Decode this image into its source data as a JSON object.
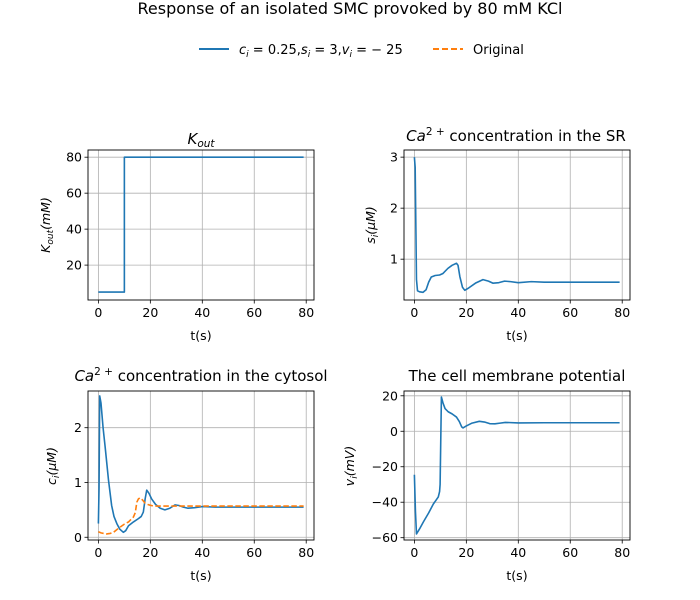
{
  "figure": {
    "suptitle": "Response of an isolated SMC provoked by 80 mM KCl",
    "legend": {
      "placement": "top-center",
      "entries": [
        {
          "label_parts": [
            "c",
            "i",
            " = 0.25,",
            "s",
            "i",
            " = 3,",
            "v",
            "i",
            " = − 25"
          ],
          "label": "c_i = 0.25, s_i = 3, v_i = −25",
          "color": "#1f77b4",
          "style": "solid"
        },
        {
          "label": "Original",
          "color": "#ff7f0e",
          "style": "dashed"
        }
      ]
    }
  },
  "chart_data": [
    {
      "type": "line",
      "title": "K_out",
      "title_parts": {
        "base": "K",
        "sub": "out",
        "rest": ""
      },
      "xlabel": "t(s)",
      "ylabel": "K_out(mM)",
      "ylabel_parts": {
        "base": "K",
        "sub": "out",
        "rest": "(mM)"
      },
      "xlim": [
        -4,
        83
      ],
      "ylim": [
        0.6,
        84
      ],
      "xticks": [
        0,
        20,
        40,
        60,
        80
      ],
      "yticks": [
        20,
        40,
        60,
        80
      ],
      "grid": true,
      "series": [
        {
          "name": "c_i = 0.25, s_i = 3, v_i = −25",
          "color": "#1f77b4",
          "style": "solid",
          "x": [
            0,
            10,
            10,
            79
          ],
          "y": [
            5,
            5,
            80,
            80
          ]
        }
      ]
    },
    {
      "type": "line",
      "title": "Ca2+ concentration in the SR",
      "title_parts": {
        "base": "Ca",
        "sup": "2 +",
        "rest": " concentration in the SR"
      },
      "xlabel": "t(s)",
      "ylabel": "s_i(μM)",
      "ylabel_parts": {
        "base": "s",
        "sub": "i",
        "rest": "(μM)"
      },
      "xlim": [
        -4,
        83
      ],
      "ylim": [
        0.2,
        3.14
      ],
      "xticks": [
        0,
        20,
        40,
        60,
        80
      ],
      "yticks": [
        1,
        2,
        3
      ],
      "grid": true,
      "series": [
        {
          "name": "c_i = 0.25, s_i = 3, v_i = −25",
          "color": "#1f77b4",
          "style": "solid",
          "x": [
            0,
            0.3,
            0.6,
            0.8,
            1.2,
            2,
            3.3,
            4.5,
            5.5,
            6.5,
            8,
            9.7,
            11,
            12.9,
            14.5,
            16.2,
            16.8,
            17.5,
            18.5,
            19.4,
            21,
            23.5,
            26.4,
            28.5,
            30.2,
            32.5,
            34.7,
            37,
            40,
            45,
            50,
            60,
            70,
            79
          ],
          "y": [
            3.0,
            2.8,
            1.5,
            0.6,
            0.38,
            0.36,
            0.35,
            0.4,
            0.55,
            0.65,
            0.68,
            0.69,
            0.72,
            0.82,
            0.88,
            0.92,
            0.88,
            0.66,
            0.45,
            0.39,
            0.44,
            0.53,
            0.6,
            0.57,
            0.53,
            0.54,
            0.57,
            0.56,
            0.54,
            0.56,
            0.55,
            0.55,
            0.55,
            0.55
          ]
        }
      ]
    },
    {
      "type": "line",
      "title": "Ca2+ concentration in the cytosol",
      "title_parts": {
        "base": "Ca",
        "sup": "2 +",
        "rest": " concentration in the cytosol"
      },
      "xlabel": "t(s)",
      "ylabel": "c_i(μM)",
      "ylabel_parts": {
        "base": "c",
        "sub": "i",
        "rest": "(μM)"
      },
      "xlim": [
        -4,
        83
      ],
      "ylim": [
        -0.05,
        2.67
      ],
      "xticks": [
        0,
        20,
        40,
        60,
        80
      ],
      "yticks": [
        0,
        1,
        2
      ],
      "grid": true,
      "series": [
        {
          "name": "c_i = 0.25, s_i = 3, v_i = −25",
          "color": "#1f77b4",
          "style": "solid",
          "x": [
            0,
            0.25,
            0.5,
            1,
            1.8,
            2.6,
            3.9,
            5.1,
            6,
            7.1,
            8.2,
            9.6,
            10.5,
            11.6,
            13.5,
            15.4,
            16.5,
            17.3,
            18,
            18.6,
            19.5,
            20.5,
            22,
            23.8,
            25.6,
            27.5,
            29.5,
            31,
            32.7,
            34.5,
            37,
            40,
            45,
            50,
            60,
            70,
            79
          ],
          "y": [
            0.25,
            0.9,
            2.58,
            2.45,
            2.0,
            1.65,
            1.04,
            0.58,
            0.38,
            0.25,
            0.15,
            0.09,
            0.12,
            0.21,
            0.28,
            0.34,
            0.38,
            0.46,
            0.7,
            0.86,
            0.8,
            0.7,
            0.6,
            0.53,
            0.5,
            0.53,
            0.59,
            0.58,
            0.55,
            0.53,
            0.54,
            0.56,
            0.55,
            0.55,
            0.55,
            0.55,
            0.55
          ]
        },
        {
          "name": "Original",
          "color": "#ff7f0e",
          "style": "dashed",
          "x": [
            0,
            1,
            2,
            3.2,
            4.5,
            5.8,
            7.1,
            8.5,
            10,
            11.6,
            13.5,
            14.2,
            14.8,
            15.4,
            16,
            17,
            18,
            19.5,
            21.2,
            25,
            30,
            40,
            50,
            60,
            70,
            79
          ],
          "y": [
            0.1,
            0.08,
            0.07,
            0.06,
            0.07,
            0.09,
            0.14,
            0.19,
            0.24,
            0.28,
            0.37,
            0.45,
            0.64,
            0.7,
            0.72,
            0.68,
            0.62,
            0.59,
            0.57,
            0.57,
            0.57,
            0.57,
            0.57,
            0.57,
            0.57,
            0.57
          ]
        }
      ]
    },
    {
      "type": "line",
      "title": "The cell membrane potential",
      "xlabel": "t(s)",
      "ylabel": "v_i(mV)",
      "ylabel_parts": {
        "base": "v",
        "sub": "i",
        "rest": "(mV)"
      },
      "xlim": [
        -4,
        83
      ],
      "ylim": [
        -61.3,
        22.7
      ],
      "xticks": [
        0,
        20,
        40,
        60,
        80
      ],
      "yticks": [
        -60,
        -40,
        -20,
        0,
        20
      ],
      "grid": true,
      "series": [
        {
          "name": "c_i = 0.25, s_i = 3, v_i = −25",
          "color": "#1f77b4",
          "style": "solid",
          "x": [
            0,
            0.4,
            0.8,
            2,
            3.5,
            5.5,
            7.3,
            8.5,
            9.2,
            9.7,
            9.9,
            10.1,
            10.4,
            11,
            11.8,
            13,
            14.5,
            16.2,
            17.3,
            18.2,
            18.7,
            20,
            22,
            25,
            27,
            29,
            31,
            33,
            35,
            40,
            50,
            60,
            70,
            79
          ],
          "y": [
            -24.5,
            -45,
            -57.9,
            -55,
            -51,
            -46,
            -41,
            -38.5,
            -37,
            -34,
            -30,
            -10,
            19.3,
            16,
            12.8,
            11,
            9.8,
            8,
            5.5,
            2.5,
            1.9,
            3,
            4.5,
            5.6,
            5.2,
            4.3,
            4.2,
            4.6,
            5,
            4.7,
            4.8,
            4.8,
            4.8,
            4.8
          ]
        }
      ]
    }
  ]
}
